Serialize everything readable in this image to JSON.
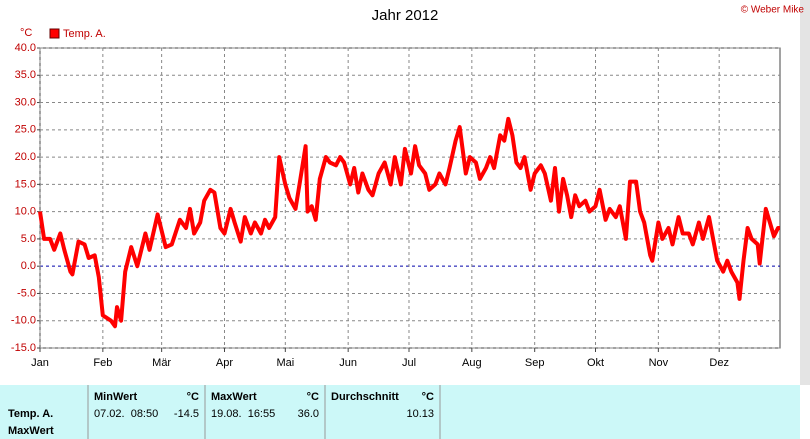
{
  "chart_data": {
    "type": "line",
    "title": "Jahr 2012",
    "credit": "© Weber Mike",
    "y_unit": "°C",
    "x": [
      1,
      3,
      6,
      8,
      11,
      13,
      16,
      17,
      20,
      23,
      25,
      28,
      30,
      32,
      36,
      38,
      39,
      41,
      43,
      46,
      49,
      53,
      55,
      59,
      63,
      66,
      70,
      73,
      75,
      77,
      80,
      82,
      85,
      87,
      90,
      92,
      95,
      97,
      100,
      102,
      105,
      107,
      110,
      112,
      114,
      117,
      119,
      122,
      124,
      127,
      129,
      132,
      133,
      135,
      137,
      139,
      142,
      144,
      147,
      149,
      151,
      154,
      156,
      158,
      160,
      163,
      165,
      168,
      171,
      174,
      176,
      179,
      181,
      184,
      186,
      188,
      191,
      193,
      196,
      198,
      201,
      203,
      206,
      208,
      211,
      213,
      216,
      218,
      221,
      223,
      225,
      228,
      230,
      232,
      234,
      236,
      238,
      240,
      243,
      245,
      248,
      250,
      253,
      255,
      257,
      259,
      261,
      263,
      265,
      267,
      270,
      272,
      275,
      277,
      280,
      282,
      285,
      287,
      290,
      292,
      295,
      297,
      299,
      302,
      303,
      306,
      308,
      311,
      313,
      316,
      318,
      321,
      323,
      326,
      328,
      331,
      333,
      335,
      338,
      340,
      342,
      345,
      346,
      348,
      350,
      352,
      355,
      356,
      359,
      361,
      363,
      365,
      366
    ],
    "series": [
      {
        "name": "Temp. A.",
        "color": "#ff0000",
        "values": [
          10,
          5,
          5,
          3,
          6,
          3,
          -1,
          -1.5,
          4.5,
          4,
          1.5,
          2,
          -2,
          -9,
          -10,
          -11,
          -7.5,
          -10,
          -1,
          3.5,
          0,
          6,
          3,
          9.5,
          3.5,
          4,
          8.5,
          7,
          10.5,
          6,
          8,
          12,
          14,
          13.5,
          7,
          6,
          10.5,
          8,
          4.5,
          9,
          6,
          8,
          6,
          8.5,
          7,
          9,
          20,
          15,
          12.5,
          10.5,
          15,
          22,
          10,
          11,
          8.5,
          16,
          20,
          19,
          18.5,
          20,
          19,
          15,
          18,
          13.5,
          17,
          14,
          13,
          17,
          19,
          15,
          20,
          15,
          21.5,
          17,
          22,
          18.5,
          17,
          14,
          15,
          17,
          15,
          18,
          23,
          25.5,
          17,
          20,
          19,
          16,
          18,
          20,
          18,
          24,
          23,
          27,
          24,
          19,
          18,
          20,
          14,
          17,
          18.5,
          17,
          12,
          18,
          10,
          16,
          13,
          9,
          13,
          11,
          12,
          10,
          11,
          14,
          8.5,
          10.5,
          9,
          11,
          5,
          15.5,
          15.5,
          10,
          8,
          2,
          1,
          8,
          5,
          7,
          4,
          9,
          6,
          6,
          4,
          8,
          5,
          9,
          5,
          1,
          -1,
          1,
          -1,
          -3,
          -6,
          1,
          7,
          5,
          4,
          0.5,
          10.5,
          8,
          5.5,
          7,
          7
        ]
      }
    ],
    "xlim": [
      1,
      366
    ],
    "xticks": [
      {
        "value": 1,
        "label": "Jan"
      },
      {
        "value": 32,
        "label": "Feb"
      },
      {
        "value": 61,
        "label": "Mär"
      },
      {
        "value": 92,
        "label": "Apr"
      },
      {
        "value": 122,
        "label": "Mai"
      },
      {
        "value": 153,
        "label": "Jun"
      },
      {
        "value": 183,
        "label": "Jul"
      },
      {
        "value": 214,
        "label": "Aug"
      },
      {
        "value": 245,
        "label": "Sep"
      },
      {
        "value": 275,
        "label": "Okt"
      },
      {
        "value": 306,
        "label": "Nov"
      },
      {
        "value": 336,
        "label": "Dez"
      }
    ],
    "ylim": [
      -15,
      40
    ],
    "yticks": [
      {
        "value": 40,
        "label": "40.0"
      },
      {
        "value": 35,
        "label": "35.0"
      },
      {
        "value": 30,
        "label": "30.0"
      },
      {
        "value": 25,
        "label": "25.0"
      },
      {
        "value": 20,
        "label": "20.0"
      },
      {
        "value": 15,
        "label": "15.0"
      },
      {
        "value": 10,
        "label": "10.0"
      },
      {
        "value": 5,
        "label": "5.0"
      },
      {
        "value": 0,
        "label": "0.0"
      },
      {
        "value": -5,
        "label": "-5.0"
      },
      {
        "value": -10,
        "label": "-10.0"
      },
      {
        "value": -15,
        "label": "-15.0"
      }
    ],
    "grid": true,
    "zero_line_color": "#0000aa"
  },
  "stats": {
    "row_labels": [
      "Temp. A.",
      "MaxWert"
    ],
    "columns": [
      {
        "name": "MinWert",
        "unit": "°C",
        "date": "07.02.  08:50",
        "value": "-14.5"
      },
      {
        "name": "MaxWert",
        "unit": "°C",
        "date": "19.08.  16:55",
        "value": "36.0"
      },
      {
        "name": "Durchschnitt",
        "unit": "°C",
        "value": "10.13"
      }
    ]
  }
}
